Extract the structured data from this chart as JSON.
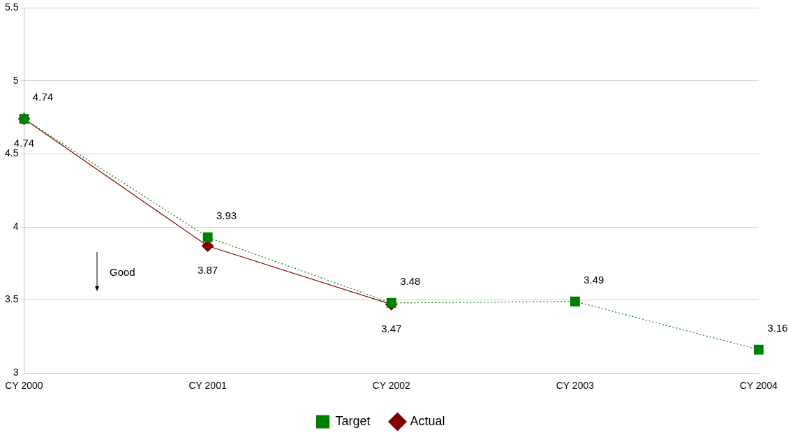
{
  "chart_data": {
    "type": "line",
    "categories": [
      "CY 2000",
      "CY 2001",
      "CY 2002",
      "CY 2003",
      "CY 2004"
    ],
    "series": [
      {
        "name": "Actual",
        "color": "#800000",
        "marker": "diamond",
        "line_style": "solid",
        "values": [
          4.74,
          3.87,
          3.47,
          null,
          null
        ]
      },
      {
        "name": "Target",
        "color": "#008000",
        "marker": "square",
        "line_style": "dotted",
        "values": [
          4.74,
          3.93,
          3.48,
          3.49,
          3.16
        ]
      }
    ],
    "ylim": [
      3,
      5.5
    ],
    "yticks": [
      3,
      3.5,
      4,
      4.5,
      5,
      5.5
    ],
    "grid": "y",
    "legend": "bottom",
    "data_labels": true,
    "annotations": [
      "Good"
    ]
  }
}
